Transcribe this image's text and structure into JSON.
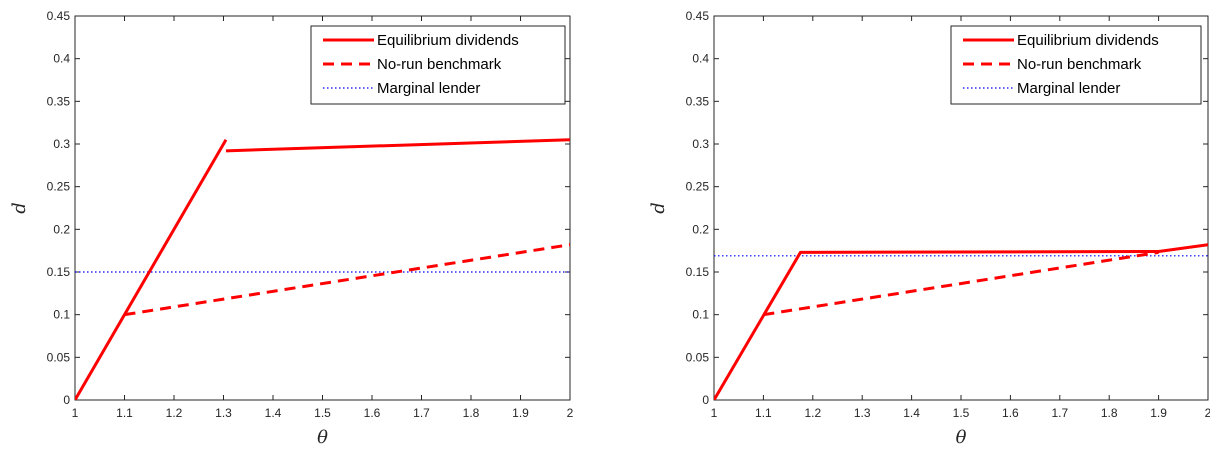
{
  "chart_data": [
    {
      "type": "line",
      "xlabel": "θ",
      "ylabel": "d",
      "xlim": [
        1,
        2
      ],
      "ylim": [
        0,
        0.45
      ],
      "xticks": [
        "1",
        "1.1",
        "1.2",
        "1.3",
        "1.4",
        "1.5",
        "1.6",
        "1.7",
        "1.8",
        "1.9",
        "2"
      ],
      "yticks": [
        "0",
        "0.05",
        "0.1",
        "0.15",
        "0.2",
        "0.25",
        "0.3",
        "0.35",
        "0.4",
        "0.45"
      ],
      "grid": false,
      "legend_position": "top-right",
      "series": [
        {
          "name": "Equilibrium dividends",
          "color": "#ff0000",
          "style": "solid",
          "segments": [
            [
              [
                1.0,
                0.0
              ],
              [
                1.305,
                0.305
              ]
            ],
            [
              [
                1.305,
                0.292
              ],
              [
                2.0,
                0.305
              ]
            ]
          ]
        },
        {
          "name": "No-run benchmark",
          "color": "#ff0000",
          "style": "dashed",
          "segments": [
            [
              [
                1.1,
                0.1
              ],
              [
                2.0,
                0.182
              ]
            ]
          ]
        },
        {
          "name": "Marginal lender",
          "color": "#0000ff",
          "style": "dotted",
          "segments": [
            [
              [
                1.0,
                0.15
              ],
              [
                2.0,
                0.15
              ]
            ]
          ]
        }
      ]
    },
    {
      "type": "line",
      "xlabel": "θ",
      "ylabel": "d",
      "xlim": [
        1,
        2
      ],
      "ylim": [
        0,
        0.45
      ],
      "xticks": [
        "1",
        "1.1",
        "1.2",
        "1.3",
        "1.4",
        "1.5",
        "1.6",
        "1.7",
        "1.8",
        "1.9",
        "2"
      ],
      "yticks": [
        "0",
        "0.05",
        "0.1",
        "0.15",
        "0.2",
        "0.25",
        "0.3",
        "0.35",
        "0.4",
        "0.45"
      ],
      "grid": false,
      "legend_position": "top-right",
      "series": [
        {
          "name": "Equilibrium dividends",
          "color": "#ff0000",
          "style": "solid",
          "segments": [
            [
              [
                1.0,
                0.0
              ],
              [
                1.175,
                0.173
              ],
              [
                1.9,
                0.174
              ],
              [
                2.0,
                0.182
              ]
            ]
          ]
        },
        {
          "name": "No-run benchmark",
          "color": "#ff0000",
          "style": "dashed",
          "segments": [
            [
              [
                1.1,
                0.1
              ],
              [
                1.9,
                0.173
              ]
            ]
          ]
        },
        {
          "name": "Marginal lender",
          "color": "#0000ff",
          "style": "dotted",
          "segments": [
            [
              [
                1.0,
                0.169
              ],
              [
                2.0,
                0.169
              ]
            ]
          ]
        }
      ]
    }
  ]
}
